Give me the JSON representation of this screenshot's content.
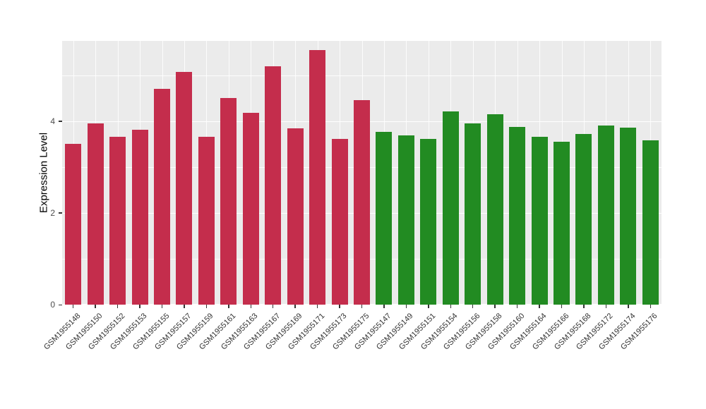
{
  "chart_data": {
    "type": "bar",
    "title": "",
    "xlabel": "",
    "ylabel": "Expression Level",
    "ylim": [
      0,
      5.75
    ],
    "yticks": [
      0,
      2,
      4
    ],
    "yticks_minor": [
      1,
      3,
      5
    ],
    "grid": "on",
    "legend": "none",
    "panel_background": "#EBEBEB",
    "gridline_color": "#FFFFFF",
    "group_colors": {
      "red": "#C42D4C",
      "green": "#228B22"
    },
    "bars": [
      {
        "label": "GSM1955148",
        "value": 3.5,
        "group": "red"
      },
      {
        "label": "GSM1955150",
        "value": 3.95,
        "group": "red"
      },
      {
        "label": "GSM1955152",
        "value": 3.66,
        "group": "red"
      },
      {
        "label": "GSM1955153",
        "value": 3.81,
        "group": "red"
      },
      {
        "label": "GSM1955155",
        "value": 4.7,
        "group": "red"
      },
      {
        "label": "GSM1955157",
        "value": 5.07,
        "group": "red"
      },
      {
        "label": "GSM1955159",
        "value": 3.66,
        "group": "red"
      },
      {
        "label": "GSM1955161",
        "value": 4.51,
        "group": "red"
      },
      {
        "label": "GSM1955163",
        "value": 4.18,
        "group": "red"
      },
      {
        "label": "GSM1955167",
        "value": 5.2,
        "group": "red"
      },
      {
        "label": "GSM1955169",
        "value": 3.85,
        "group": "red"
      },
      {
        "label": "GSM1955171",
        "value": 5.55,
        "group": "red"
      },
      {
        "label": "GSM1955173",
        "value": 3.61,
        "group": "red"
      },
      {
        "label": "GSM1955175",
        "value": 4.46,
        "group": "red"
      },
      {
        "label": "GSM1955147",
        "value": 3.77,
        "group": "green"
      },
      {
        "label": "GSM1955149",
        "value": 3.69,
        "group": "green"
      },
      {
        "label": "GSM1955151",
        "value": 3.62,
        "group": "green"
      },
      {
        "label": "GSM1955154",
        "value": 4.22,
        "group": "green"
      },
      {
        "label": "GSM1955156",
        "value": 3.95,
        "group": "green"
      },
      {
        "label": "GSM1955158",
        "value": 4.15,
        "group": "green"
      },
      {
        "label": "GSM1955160",
        "value": 3.87,
        "group": "green"
      },
      {
        "label": "GSM1955164",
        "value": 3.66,
        "group": "green"
      },
      {
        "label": "GSM1955166",
        "value": 3.55,
        "group": "green"
      },
      {
        "label": "GSM1955168",
        "value": 3.72,
        "group": "green"
      },
      {
        "label": "GSM1955172",
        "value": 3.9,
        "group": "green"
      },
      {
        "label": "GSM1955174",
        "value": 3.86,
        "group": "green"
      },
      {
        "label": "GSM1955176",
        "value": 3.58,
        "group": "green"
      }
    ]
  }
}
